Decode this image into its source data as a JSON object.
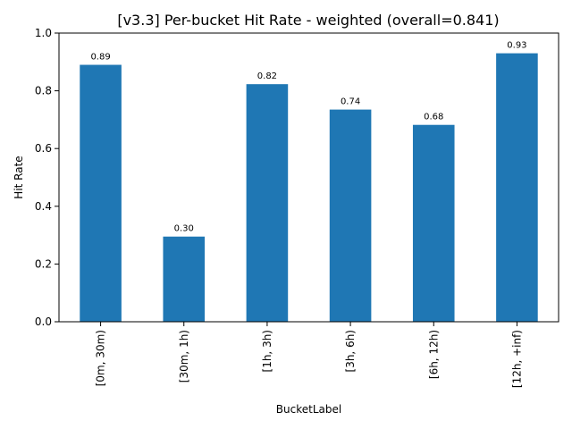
{
  "chart_data": {
    "type": "bar",
    "title": "[v3.3] Per-bucket Hit Rate - weighted (overall=0.841)",
    "xlabel": "BucketLabel",
    "ylabel": "Hit Rate",
    "categories": [
      "[0m, 30m)",
      "[30m, 1h)",
      "[1h, 3h)",
      "[3h, 6h)",
      "[6h, 12h)",
      "[12h, +inf)"
    ],
    "values": [
      0.89,
      0.295,
      0.823,
      0.735,
      0.682,
      0.93
    ],
    "data_labels": [
      "0.89",
      "0.30",
      "0.82",
      "0.74",
      "0.68",
      "0.93"
    ],
    "ylim": [
      0,
      1.0
    ],
    "yticks": [
      "0.0",
      "0.2",
      "0.4",
      "0.6",
      "0.8",
      "1.0"
    ],
    "grid": false,
    "bar_color": "#1f77b4"
  }
}
